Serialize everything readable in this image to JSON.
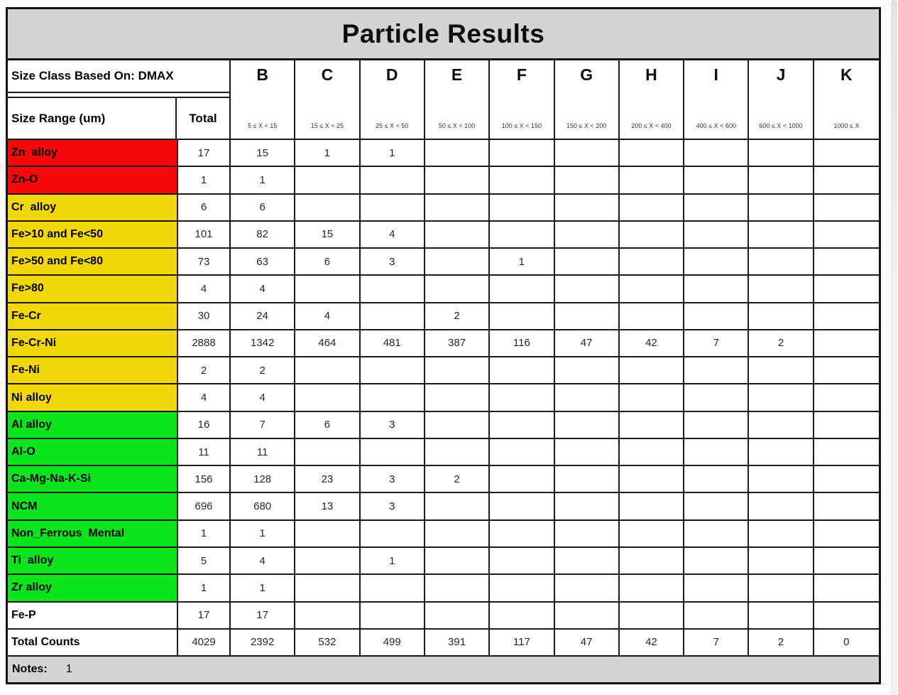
{
  "title": "Particle Results",
  "header": {
    "size_class_label": "Size Class Based On: DMAX",
    "size_range_label": "Size Range (um)",
    "total_label": "Total",
    "columns": [
      {
        "letter": "B",
        "range": "5 ≤ X < 15"
      },
      {
        "letter": "C",
        "range": "15 ≤ X < 25"
      },
      {
        "letter": "D",
        "range": "25 ≤ X < 50"
      },
      {
        "letter": "E",
        "range": "50 ≤ X < 100"
      },
      {
        "letter": "F",
        "range": "100 ≤ X < 150"
      },
      {
        "letter": "G",
        "range": "150 ≤ X < 200"
      },
      {
        "letter": "H",
        "range": "200 ≤ X < 400"
      },
      {
        "letter": "I",
        "range": "400 ≤ X < 600"
      },
      {
        "letter": "J",
        "range": "600 ≤ X < 1000"
      },
      {
        "letter": "K",
        "range": "1000 ≤ X"
      }
    ]
  },
  "colors": {
    "red": "#f60808",
    "yellow": "#f2d70a",
    "green": "#0ce41c",
    "white": "#ffffff",
    "band_gray": "#d4d4d4"
  },
  "rows": [
    {
      "label": "Zn  alloy",
      "color": "red",
      "values": [
        "17",
        "15",
        "1",
        "1",
        "",
        "",
        "",
        "",
        "",
        "",
        ""
      ]
    },
    {
      "label": "Zn-O",
      "color": "red",
      "values": [
        "1",
        "1",
        "",
        "",
        "",
        "",
        "",
        "",
        "",
        "",
        ""
      ]
    },
    {
      "label": "Cr  alloy",
      "color": "yellow",
      "values": [
        "6",
        "6",
        "",
        "",
        "",
        "",
        "",
        "",
        "",
        "",
        ""
      ]
    },
    {
      "label": "Fe>10 and Fe<50",
      "color": "yellow",
      "values": [
        "101",
        "82",
        "15",
        "4",
        "",
        "",
        "",
        "",
        "",
        "",
        ""
      ]
    },
    {
      "label": "Fe>50 and Fe<80",
      "color": "yellow",
      "values": [
        "73",
        "63",
        "6",
        "3",
        "",
        "1",
        "",
        "",
        "",
        "",
        ""
      ]
    },
    {
      "label": "Fe>80",
      "color": "yellow",
      "values": [
        "4",
        "4",
        "",
        "",
        "",
        "",
        "",
        "",
        "",
        "",
        ""
      ]
    },
    {
      "label": "Fe-Cr",
      "color": "yellow",
      "values": [
        "30",
        "24",
        "4",
        "",
        "2",
        "",
        "",
        "",
        "",
        "",
        ""
      ]
    },
    {
      "label": "Fe-Cr-Ni",
      "color": "yellow",
      "values": [
        "2888",
        "1342",
        "464",
        "481",
        "387",
        "116",
        "47",
        "42",
        "7",
        "2",
        ""
      ]
    },
    {
      "label": "Fe-Ni",
      "color": "yellow",
      "values": [
        "2",
        "2",
        "",
        "",
        "",
        "",
        "",
        "",
        "",
        "",
        ""
      ]
    },
    {
      "label": "Ni alloy",
      "color": "yellow",
      "values": [
        "4",
        "4",
        "",
        "",
        "",
        "",
        "",
        "",
        "",
        "",
        ""
      ]
    },
    {
      "label": "Al alloy",
      "color": "green",
      "values": [
        "16",
        "7",
        "6",
        "3",
        "",
        "",
        "",
        "",
        "",
        "",
        ""
      ]
    },
    {
      "label": "Al-O",
      "color": "green",
      "values": [
        "11",
        "11",
        "",
        "",
        "",
        "",
        "",
        "",
        "",
        "",
        ""
      ]
    },
    {
      "label": "Ca-Mg-Na-K-Si",
      "color": "green",
      "values": [
        "156",
        "128",
        "23",
        "3",
        "2",
        "",
        "",
        "",
        "",
        "",
        ""
      ]
    },
    {
      "label": "NCM",
      "color": "green",
      "values": [
        "696",
        "680",
        "13",
        "3",
        "",
        "",
        "",
        "",
        "",
        "",
        ""
      ]
    },
    {
      "label": "Non_Ferrous  Mental",
      "color": "green",
      "values": [
        "1",
        "1",
        "",
        "",
        "",
        "",
        "",
        "",
        "",
        "",
        ""
      ]
    },
    {
      "label": "Ti  alloy",
      "color": "green",
      "values": [
        "5",
        "4",
        "",
        "1",
        "",
        "",
        "",
        "",
        "",
        "",
        ""
      ]
    },
    {
      "label": "Zr alloy",
      "color": "green",
      "values": [
        "1",
        "1",
        "",
        "",
        "",
        "",
        "",
        "",
        "",
        "",
        ""
      ]
    },
    {
      "label": "Fe-P",
      "color": "white",
      "values": [
        "17",
        "17",
        "",
        "",
        "",
        "",
        "",
        "",
        "",
        "",
        ""
      ]
    }
  ],
  "total_row": {
    "label": "Total Counts",
    "values": [
      "4029",
      "2392",
      "532",
      "499",
      "391",
      "117",
      "47",
      "42",
      "7",
      "2",
      "0"
    ]
  },
  "notes": {
    "label": "Notes:",
    "value": "1"
  }
}
